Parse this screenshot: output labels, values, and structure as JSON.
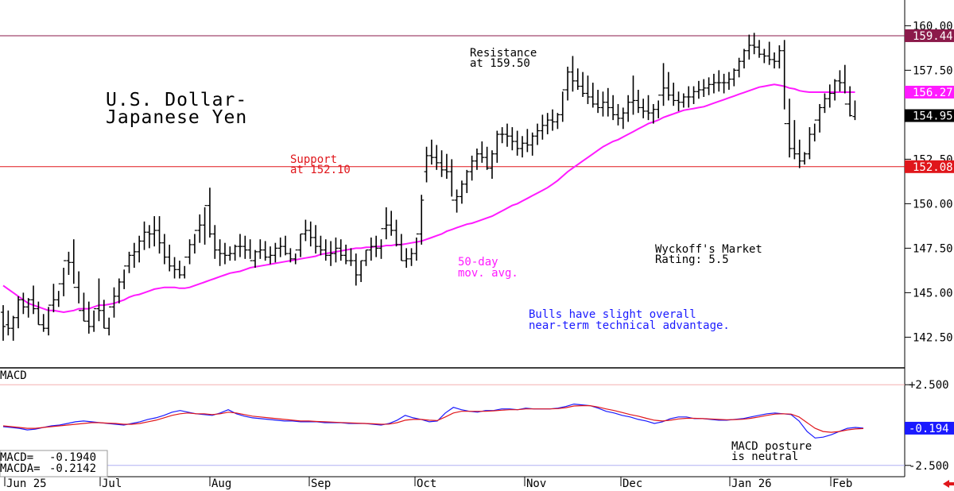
{
  "chart_data": [
    {
      "type": "ohlc",
      "title": "U.S. Dollar-\nJapanese Yen",
      "title_lines": [
        "U.S. Dollar-",
        "Japanese Yen"
      ],
      "ylim": [
        141.0,
        161.0
      ],
      "y_ticks": [
        {
          "value": 160.0,
          "label": "160.00"
        },
        {
          "value": 157.5,
          "label": "157.50"
        },
        {
          "value": 155.0,
          "label": "155.00"
        },
        {
          "value": 152.5,
          "label": "152.50"
        },
        {
          "value": 150.0,
          "label": "150.00"
        },
        {
          "value": 147.5,
          "label": "147.50"
        },
        {
          "value": 145.0,
          "label": "145.00"
        },
        {
          "value": 142.5,
          "label": "142.50"
        }
      ],
      "x_months": [
        "Jun 25",
        "Jul",
        "Aug",
        "Sep",
        "Oct",
        "Nov",
        "Dec",
        "Jan 26",
        "Feb"
      ],
      "resistance": {
        "value": 159.44,
        "label": "159.44",
        "text": [
          "Resistance",
          "at 159.50"
        ],
        "color": "#8b1a4a"
      },
      "support": {
        "value": 152.08,
        "label": "152.08",
        "text": [
          "Support",
          "at 152.10"
        ],
        "color": "#e0161b"
      },
      "ma_label": {
        "text": [
          "50-day",
          "mov. avg."
        ],
        "value": 156.27,
        "label": "156.27",
        "color": "#ff1aff"
      },
      "last_price": {
        "value": 154.95,
        "label": "154.95"
      },
      "rating_text": [
        "Wyckoff's Market",
        "Rating: 5.5"
      ],
      "bias_text": [
        "Bulls have slight overall",
        "near-term technical advantage."
      ],
      "bias_color": "#1a1aff",
      "bars_high": [
        144.3,
        144.0,
        143.7,
        144.8,
        145.0,
        144.7,
        145.4,
        144.5,
        143.8,
        144.2,
        145.5,
        145.1,
        146.4,
        147.3,
        148.0,
        146.2,
        145.0,
        144.5,
        144.0,
        145.8,
        144.6,
        143.6,
        145.3,
        145.8,
        146.3,
        147.3,
        147.8,
        148.2,
        149.0,
        148.8,
        149.3,
        149.3,
        148.3,
        147.7,
        147.0,
        146.8,
        146.5,
        148.0,
        148.3,
        149.4,
        149.8,
        150.9,
        148.8,
        148.0,
        147.8,
        147.6,
        147.7,
        148.3,
        148.2,
        148.0,
        147.4,
        148.0,
        147.9,
        147.6,
        147.8,
        148.1,
        148.2,
        147.5,
        147.2,
        148.3,
        149.1,
        149.0,
        148.8,
        148.2,
        148.0,
        147.9,
        148.1,
        148.0,
        147.7,
        147.5,
        147.2,
        146.8,
        147.4,
        148.1,
        148.2,
        148.0,
        149.8,
        149.6,
        149.1,
        148.3,
        147.5,
        147.5,
        148.1,
        150.5,
        153.2,
        153.6,
        153.3,
        153.0,
        152.8,
        152.5,
        150.8,
        151.3,
        151.9,
        152.7,
        153.1,
        153.5,
        153.2,
        153.0,
        154.1,
        154.3,
        154.5,
        154.3,
        154.1,
        153.8,
        154.2,
        154.0,
        154.5,
        155.0,
        155.1,
        155.3,
        155.1,
        156.3,
        157.7,
        158.3,
        157.6,
        157.4,
        157.2,
        156.8,
        156.4,
        156.3,
        156.5,
        156.1,
        155.6,
        155.4,
        156.1,
        157.2,
        156.4,
        155.9,
        156.1,
        155.6,
        155.8,
        157.9,
        157.4,
        156.8,
        156.3,
        156.2,
        156.6,
        156.6,
        156.9,
        157.0,
        157.1,
        157.3,
        157.5,
        157.3,
        157.4,
        157.6,
        158.2,
        158.7,
        159.5,
        159.6,
        159.2,
        158.7,
        159.1,
        158.5,
        158.9,
        159.2,
        155.9,
        154.7,
        153.6,
        152.9,
        154.3,
        154.5,
        155.6,
        156.2,
        156.7,
        157.0,
        157.5,
        157.8,
        156.6,
        155.8
      ],
      "bars_low": [
        142.3,
        142.6,
        142.3,
        143.0,
        143.8,
        143.6,
        143.8,
        143.2,
        142.8,
        142.6,
        143.9,
        144.2,
        144.8,
        146.0,
        145.5,
        144.4,
        143.4,
        142.7,
        142.8,
        143.4,
        143.0,
        142.6,
        143.6,
        144.4,
        145.2,
        146.1,
        146.4,
        146.7,
        147.4,
        147.5,
        147.6,
        147.2,
        146.6,
        146.2,
        145.8,
        145.8,
        145.8,
        146.6,
        147.2,
        147.8,
        147.7,
        148.1,
        146.9,
        146.5,
        146.6,
        146.8,
        146.8,
        147.0,
        146.9,
        146.9,
        146.4,
        146.9,
        146.8,
        146.6,
        146.7,
        147.0,
        147.1,
        146.7,
        146.6,
        147.0,
        147.9,
        147.6,
        147.2,
        147.1,
        146.8,
        146.5,
        146.7,
        146.8,
        146.6,
        146.5,
        145.4,
        145.6,
        146.5,
        146.8,
        147.0,
        146.9,
        148.0,
        148.2,
        147.6,
        146.8,
        146.4,
        146.5,
        146.8,
        147.7,
        151.2,
        152.2,
        151.9,
        151.5,
        151.4,
        150.4,
        149.5,
        150.0,
        150.6,
        151.3,
        151.9,
        152.3,
        151.9,
        151.4,
        152.3,
        153.4,
        153.2,
        153.0,
        152.7,
        152.6,
        152.9,
        152.7,
        153.3,
        153.6,
        153.9,
        154.1,
        154.2,
        154.6,
        155.8,
        156.3,
        156.4,
        156.0,
        155.6,
        155.4,
        155.1,
        154.9,
        154.9,
        154.7,
        154.4,
        154.2,
        154.6,
        155.0,
        155.1,
        154.8,
        154.7,
        154.5,
        154.8,
        155.5,
        155.8,
        155.5,
        155.2,
        155.4,
        155.4,
        155.6,
        155.9,
        156.0,
        156.1,
        156.2,
        156.3,
        156.2,
        156.4,
        156.6,
        157.1,
        157.6,
        158.1,
        158.4,
        158.2,
        157.9,
        157.8,
        157.6,
        157.6,
        155.3,
        152.6,
        152.5,
        152.0,
        152.2,
        152.5,
        153.5,
        154.0,
        155.1,
        155.4,
        155.8,
        156.3,
        156.2,
        154.9,
        154.7
      ],
      "bars_open": [
        143.9,
        143.2,
        143.0,
        143.6,
        144.6,
        144.2,
        144.6,
        144.1,
        143.2,
        143.0,
        144.3,
        144.6,
        145.5,
        146.8,
        146.7,
        145.3,
        144.0,
        143.4,
        143.1,
        144.1,
        144.0,
        143.0,
        144.2,
        144.8,
        145.6,
        146.5,
        147.1,
        147.3,
        147.9,
        148.4,
        148.3,
        148.5,
        147.8,
        147.0,
        146.5,
        146.3,
        146.0,
        147.0,
        147.7,
        148.5,
        148.8,
        149.9,
        148.3,
        147.4,
        147.2,
        147.1,
        147.2,
        147.6,
        147.6,
        147.4,
        146.8,
        147.3,
        147.4,
        147.0,
        147.1,
        147.5,
        147.6,
        147.2,
        146.9,
        147.4,
        148.3,
        148.5,
        148.1,
        147.6,
        147.4,
        147.1,
        147.2,
        147.5,
        147.1,
        146.8,
        146.8,
        146.0,
        146.8,
        147.4,
        147.6,
        147.5,
        148.6,
        148.8,
        148.5,
        147.7,
        146.8,
        146.9,
        147.2,
        148.3,
        151.8,
        152.7,
        152.6,
        152.3,
        151.9,
        151.8,
        150.2,
        150.4,
        151.1,
        151.8,
        152.4,
        152.8,
        152.6,
        152.0,
        152.8,
        153.9,
        153.9,
        153.8,
        153.5,
        153.1,
        153.4,
        153.3,
        153.8,
        154.1,
        154.4,
        154.7,
        154.6,
        155.0,
        156.4,
        157.4,
        156.9,
        156.6,
        156.2,
        156.0,
        155.6,
        155.4,
        155.7,
        155.4,
        155.0,
        154.8,
        155.1,
        155.7,
        155.8,
        155.4,
        155.2,
        155.1,
        155.3,
        156.1,
        156.5,
        156.1,
        155.8,
        155.7,
        156.0,
        156.0,
        156.3,
        156.4,
        156.5,
        156.7,
        156.8,
        156.8,
        156.8,
        157.0,
        157.5,
        158.0,
        158.6,
        158.9,
        158.8,
        158.4,
        158.3,
        158.1,
        158.0,
        158.6,
        154.5,
        153.1,
        152.8,
        152.4,
        152.8,
        153.9,
        154.7,
        155.4,
        155.9,
        156.2,
        156.9,
        156.8,
        155.6,
        154.9
      ],
      "bars_close": [
        143.1,
        143.0,
        143.6,
        144.6,
        144.2,
        144.6,
        144.1,
        143.2,
        143.0,
        144.3,
        144.6,
        145.5,
        146.8,
        146.7,
        145.3,
        144.0,
        143.4,
        143.1,
        144.1,
        144.0,
        143.0,
        144.2,
        144.8,
        145.6,
        146.5,
        147.1,
        147.3,
        147.9,
        148.4,
        148.3,
        148.5,
        147.8,
        147.0,
        146.5,
        146.3,
        146.0,
        147.0,
        147.7,
        148.5,
        148.8,
        149.9,
        148.3,
        147.4,
        147.2,
        147.1,
        147.2,
        147.6,
        147.6,
        147.4,
        146.8,
        147.3,
        147.4,
        147.0,
        147.1,
        147.5,
        147.6,
        147.2,
        146.9,
        147.4,
        148.3,
        148.5,
        148.1,
        147.6,
        147.4,
        147.1,
        147.2,
        147.5,
        147.1,
        146.8,
        146.8,
        146.0,
        146.8,
        147.4,
        147.6,
        147.5,
        148.6,
        148.8,
        148.5,
        147.7,
        146.8,
        146.9,
        147.2,
        148.3,
        150.2,
        152.7,
        152.6,
        152.3,
        151.9,
        151.8,
        150.2,
        150.4,
        151.1,
        151.8,
        152.4,
        152.8,
        152.6,
        152.0,
        152.8,
        153.9,
        153.9,
        153.8,
        153.5,
        153.1,
        153.4,
        153.3,
        153.8,
        154.1,
        154.4,
        154.7,
        154.6,
        155.0,
        156.4,
        157.4,
        156.9,
        156.6,
        156.2,
        156.0,
        155.6,
        155.4,
        155.7,
        155.4,
        155.0,
        154.8,
        155.1,
        155.7,
        155.8,
        155.4,
        155.2,
        155.1,
        155.3,
        156.1,
        156.5,
        156.1,
        155.8,
        155.7,
        156.0,
        156.0,
        156.3,
        156.4,
        156.5,
        156.7,
        156.8,
        156.8,
        156.8,
        157.0,
        157.5,
        158.0,
        158.6,
        158.9,
        158.8,
        158.4,
        158.3,
        158.1,
        158.0,
        158.6,
        154.5,
        153.1,
        152.8,
        152.4,
        152.8,
        153.9,
        154.7,
        155.4,
        155.9,
        156.2,
        156.9,
        156.8,
        155.6,
        154.95
      ],
      "ma50": [
        145.4,
        145.2,
        145.0,
        144.8,
        144.6,
        144.4,
        144.3,
        144.2,
        144.1,
        144.0,
        144.0,
        143.95,
        143.9,
        143.95,
        144.0,
        144.1,
        144.1,
        144.1,
        144.2,
        144.3,
        144.3,
        144.35,
        144.4,
        144.5,
        144.6,
        144.75,
        144.85,
        144.9,
        145.0,
        145.1,
        145.2,
        145.25,
        145.3,
        145.3,
        145.3,
        145.25,
        145.25,
        145.3,
        145.4,
        145.5,
        145.6,
        145.7,
        145.8,
        145.9,
        146.0,
        146.1,
        146.15,
        146.2,
        146.3,
        146.4,
        146.45,
        146.5,
        146.55,
        146.6,
        146.65,
        146.7,
        146.75,
        146.8,
        146.85,
        146.9,
        146.95,
        147.0,
        147.05,
        147.15,
        147.2,
        147.25,
        147.3,
        147.35,
        147.4,
        147.45,
        147.5,
        147.5,
        147.55,
        147.55,
        147.6,
        147.6,
        147.65,
        147.65,
        147.7,
        147.7,
        147.75,
        147.8,
        147.85,
        147.9,
        148.0,
        148.1,
        148.2,
        148.3,
        148.45,
        148.55,
        148.65,
        148.75,
        148.85,
        148.9,
        149.0,
        149.1,
        149.2,
        149.3,
        149.45,
        149.6,
        149.75,
        149.9,
        150.0,
        150.15,
        150.3,
        150.45,
        150.6,
        150.75,
        150.9,
        151.1,
        151.3,
        151.55,
        151.8,
        152.0,
        152.2,
        152.4,
        152.6,
        152.8,
        153.0,
        153.2,
        153.35,
        153.5,
        153.6,
        153.75,
        153.9,
        154.05,
        154.2,
        154.35,
        154.5,
        154.6,
        154.7,
        154.85,
        154.95,
        155.05,
        155.15,
        155.25,
        155.3,
        155.35,
        155.4,
        155.45,
        155.55,
        155.65,
        155.75,
        155.85,
        155.95,
        156.05,
        156.15,
        156.25,
        156.35,
        156.45,
        156.55,
        156.6,
        156.65,
        156.7,
        156.65,
        156.6,
        156.5,
        156.45,
        156.35,
        156.3,
        156.27,
        156.27,
        156.27,
        156.27,
        156.27,
        156.27,
        156.27,
        156.27,
        156.27,
        156.27
      ]
    },
    {
      "type": "line",
      "title": "MACD",
      "ylim": [
        -3.2,
        3.2
      ],
      "y_ticks": [
        {
          "value": 2.5,
          "label": "+2.500"
        },
        {
          "value": -2.5,
          "label": "-2.500"
        }
      ],
      "current_label": "-0.194",
      "readout": [
        {
          "name": "MACD=",
          "value": "-0.1940"
        },
        {
          "name": "MACDA=",
          "value": "-0.2142"
        }
      ],
      "note": [
        "MACD posture",
        "is neutral"
      ],
      "series": [
        {
          "name": "MACD",
          "color": "#1a1aff",
          "values": [
            -0.1,
            -0.15,
            -0.2,
            -0.3,
            -0.25,
            -0.15,
            -0.05,
            0.0,
            0.1,
            0.2,
            0.25,
            0.2,
            0.15,
            0.1,
            0.05,
            0.0,
            0.1,
            0.2,
            0.35,
            0.45,
            0.6,
            0.8,
            0.9,
            0.8,
            0.7,
            0.65,
            0.6,
            0.75,
            0.95,
            0.7,
            0.55,
            0.45,
            0.4,
            0.35,
            0.3,
            0.25,
            0.25,
            0.2,
            0.2,
            0.2,
            0.15,
            0.15,
            0.15,
            0.1,
            0.1,
            0.1,
            0.05,
            0.0,
            0.1,
            0.3,
            0.6,
            0.45,
            0.35,
            0.2,
            0.25,
            0.75,
            1.1,
            0.95,
            0.85,
            0.8,
            0.9,
            0.9,
            1.0,
            1.0,
            0.95,
            1.05,
            1.0,
            1.0,
            1.0,
            1.05,
            1.15,
            1.3,
            1.25,
            1.2,
            1.05,
            0.85,
            0.75,
            0.6,
            0.5,
            0.35,
            0.25,
            0.1,
            0.2,
            0.4,
            0.5,
            0.5,
            0.4,
            0.4,
            0.35,
            0.3,
            0.3,
            0.35,
            0.4,
            0.5,
            0.6,
            0.7,
            0.75,
            0.7,
            0.65,
            0.25,
            -0.4,
            -0.8,
            -0.75,
            -0.6,
            -0.4,
            -0.2,
            -0.15,
            -0.194
          ]
        },
        {
          "name": "MACDA",
          "color": "#e0161b",
          "values": [
            -0.05,
            -0.1,
            -0.15,
            -0.2,
            -0.2,
            -0.15,
            -0.1,
            -0.05,
            0.0,
            0.05,
            0.1,
            0.15,
            0.15,
            0.12,
            0.1,
            0.05,
            0.05,
            0.1,
            0.2,
            0.3,
            0.45,
            0.6,
            0.7,
            0.75,
            0.7,
            0.7,
            0.65,
            0.7,
            0.8,
            0.75,
            0.65,
            0.55,
            0.5,
            0.45,
            0.4,
            0.35,
            0.3,
            0.25,
            0.25,
            0.22,
            0.2,
            0.18,
            0.16,
            0.14,
            0.12,
            0.1,
            0.08,
            0.05,
            0.06,
            0.15,
            0.3,
            0.35,
            0.35,
            0.3,
            0.28,
            0.5,
            0.75,
            0.85,
            0.85,
            0.85,
            0.85,
            0.88,
            0.92,
            0.95,
            0.95,
            1.0,
            1.0,
            1.0,
            1.0,
            1.02,
            1.08,
            1.18,
            1.2,
            1.2,
            1.12,
            1.0,
            0.9,
            0.78,
            0.65,
            0.55,
            0.42,
            0.3,
            0.25,
            0.3,
            0.38,
            0.42,
            0.42,
            0.4,
            0.38,
            0.35,
            0.33,
            0.34,
            0.36,
            0.42,
            0.5,
            0.6,
            0.68,
            0.7,
            0.68,
            0.5,
            0.15,
            -0.2,
            -0.4,
            -0.45,
            -0.4,
            -0.3,
            -0.24,
            -0.2142
          ]
        }
      ]
    }
  ]
}
